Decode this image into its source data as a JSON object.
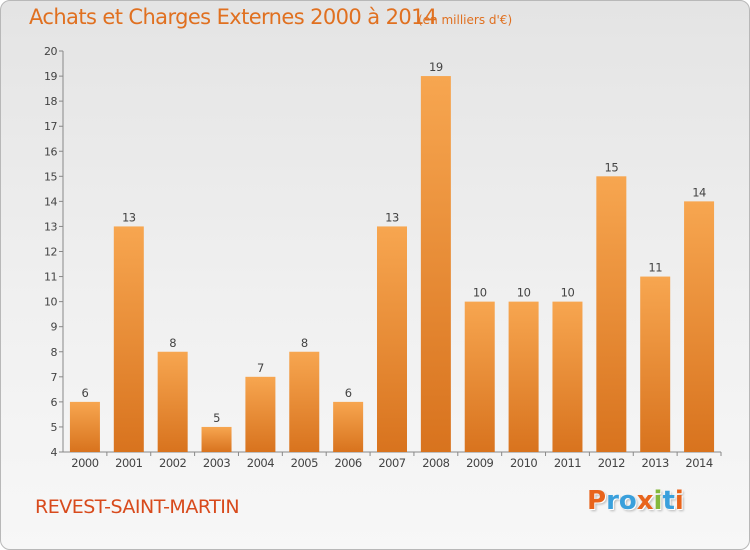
{
  "header": {
    "title": "Achats et Charges Externes 2000 à 2014",
    "unit": "(en milliers d'€)"
  },
  "footer": {
    "commune": "REVEST-SAINT-MARTIN",
    "logo": "Proxiti"
  },
  "colors": {
    "title": "#e07020",
    "commune": "#d84a1c",
    "bar_top": "#f7a650",
    "bar_bottom": "#d8731e",
    "logo_letters": [
      "#e8641c",
      "#3aa0dc",
      "#3aa0dc",
      "#e8641c",
      "#84b83c",
      "#3aa0dc",
      "#e8641c"
    ]
  },
  "chart_data": {
    "type": "bar",
    "title": "Achats et Charges Externes 2000 à 2014",
    "subtitle": "(en milliers d'€)",
    "xlabel": "",
    "ylabel": "",
    "categories": [
      "2000",
      "2001",
      "2002",
      "2003",
      "2004",
      "2005",
      "2006",
      "2007",
      "2008",
      "2009",
      "2010",
      "2011",
      "2012",
      "2013",
      "2014"
    ],
    "values": [
      6,
      13,
      8,
      5,
      7,
      8,
      6,
      13,
      19,
      10,
      10,
      10,
      15,
      11,
      14
    ],
    "ylim": [
      4,
      20
    ],
    "yticks": [
      4,
      5,
      6,
      7,
      8,
      9,
      10,
      11,
      12,
      13,
      14,
      15,
      16,
      17,
      18,
      19,
      20
    ],
    "grid": false,
    "data_labels": true
  }
}
